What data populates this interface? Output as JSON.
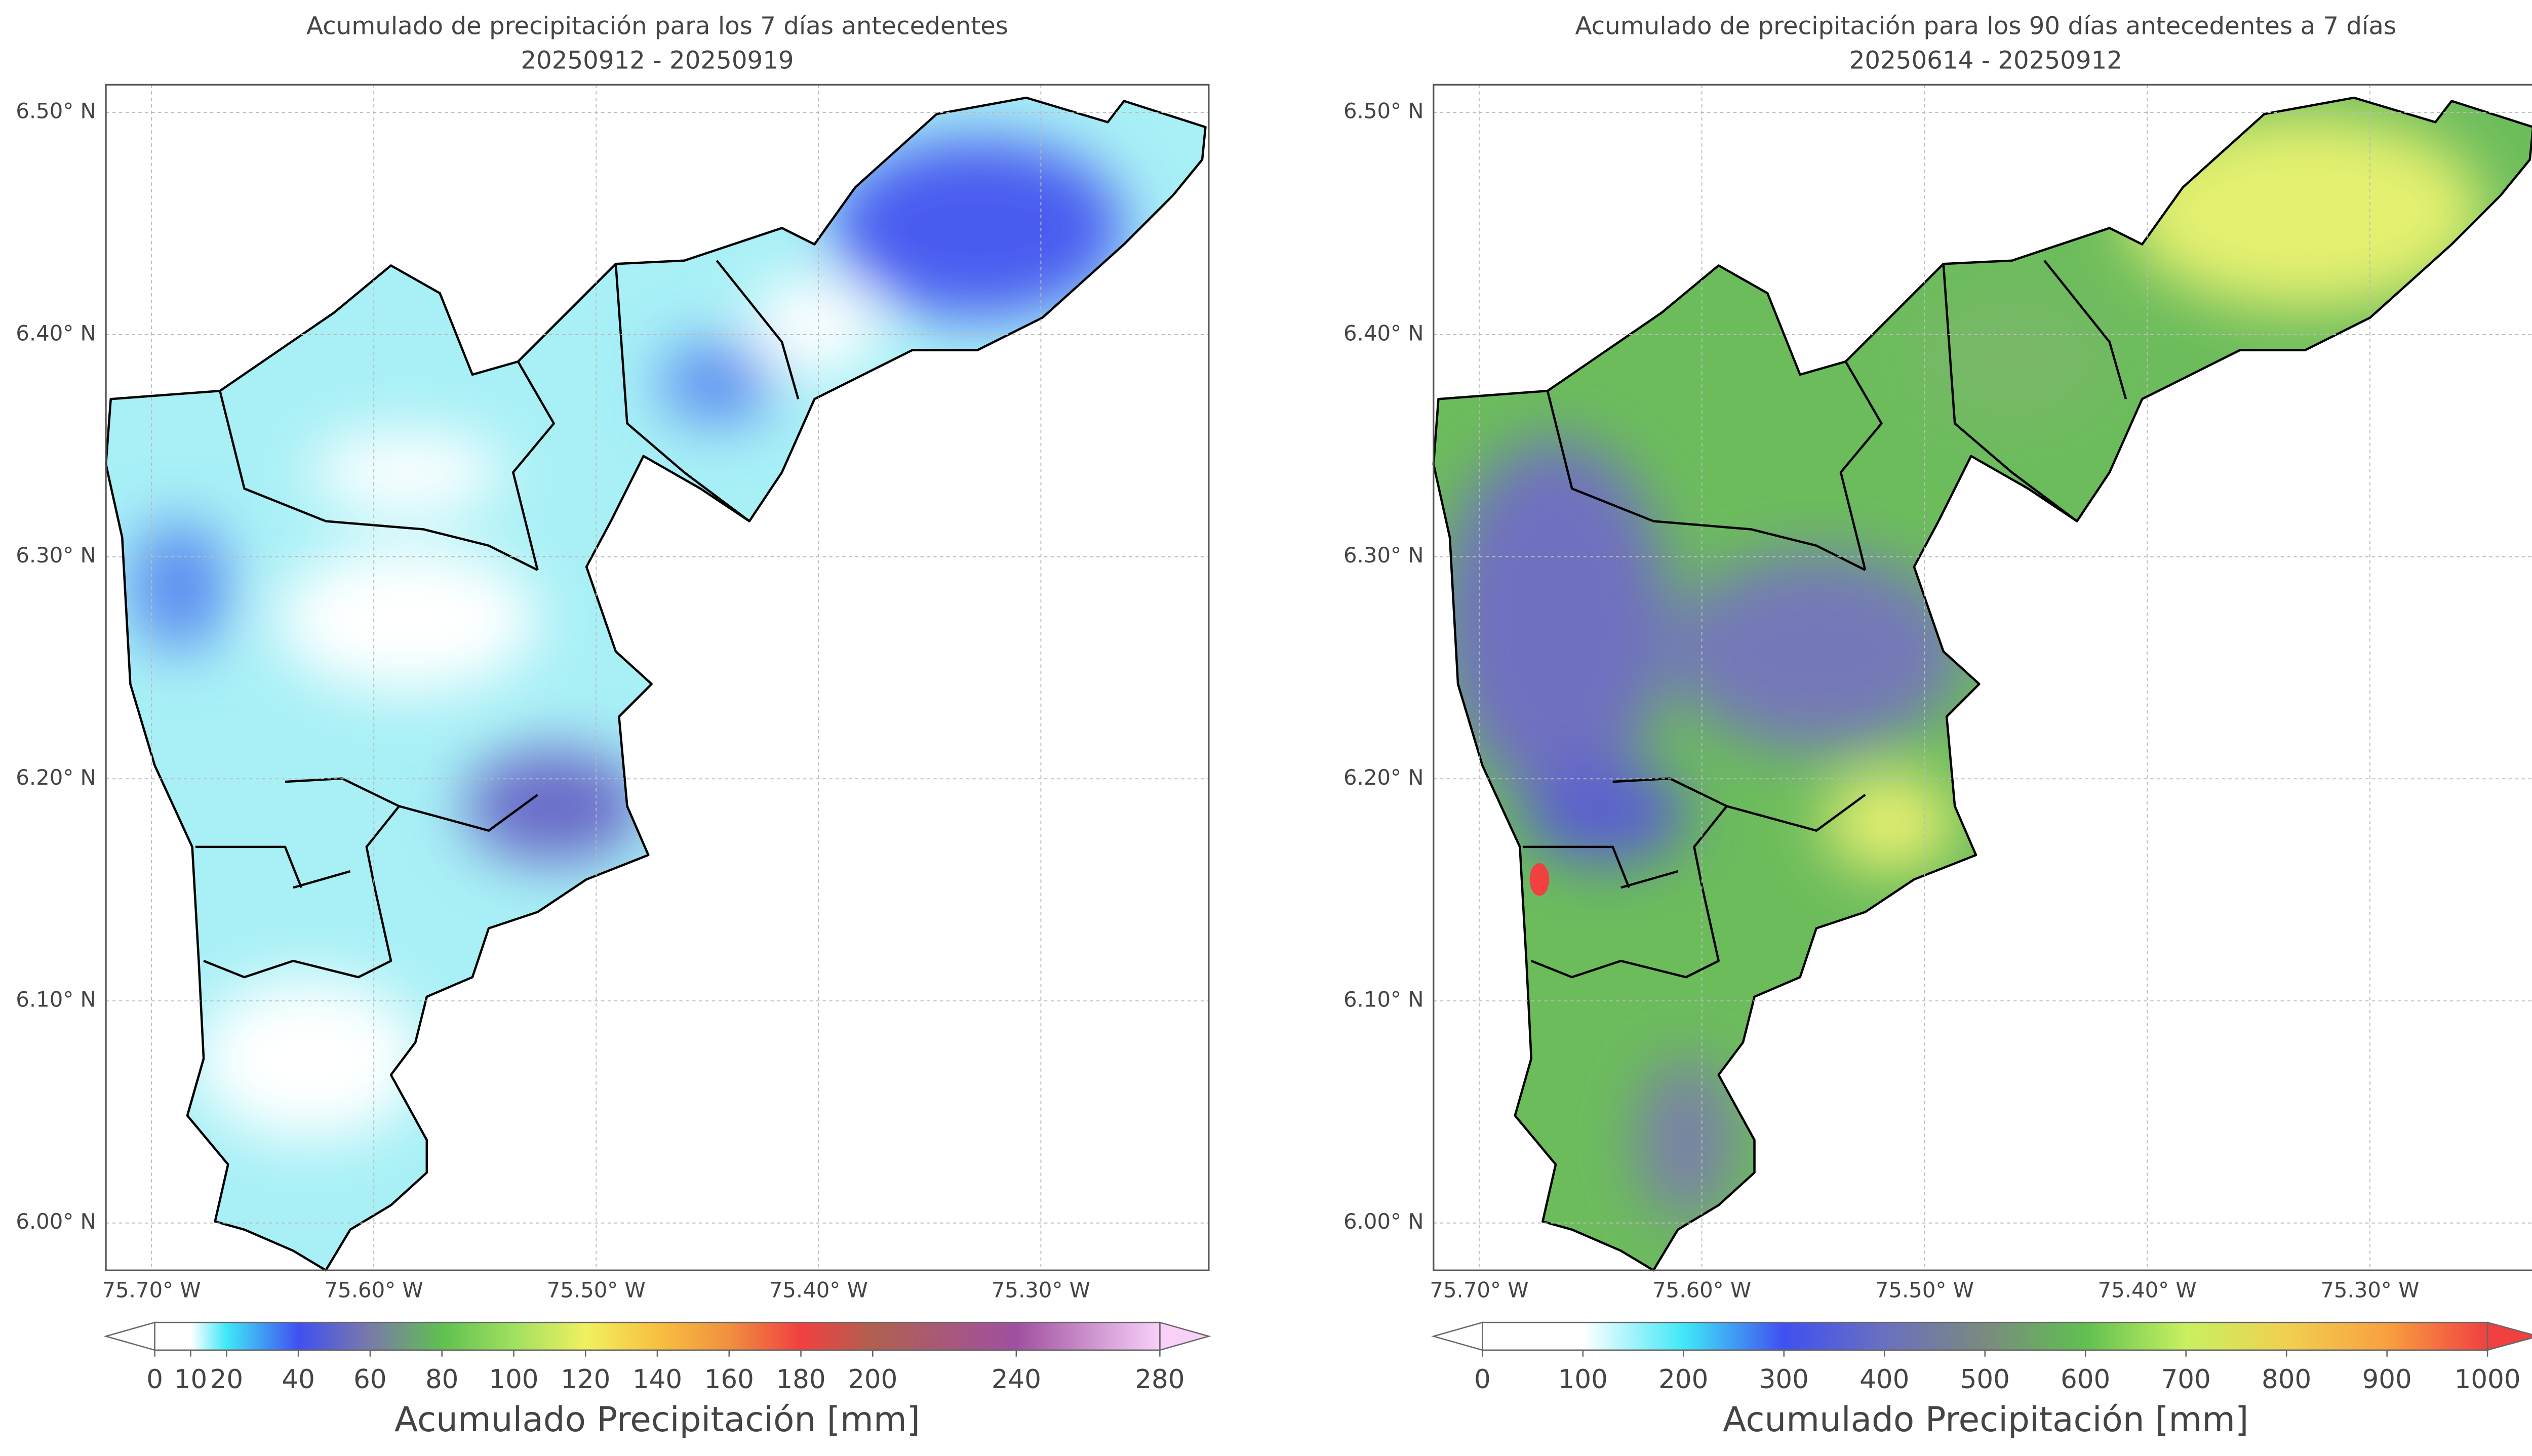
{
  "panels": [
    {
      "title": "Acumulado de precipitación para los 7 días antecedentes",
      "subtitle": "20250912 - 20250919",
      "xlim": [
        -75.7205,
        -75.2245
      ],
      "ylim": [
        5.9787,
        6.5125
      ],
      "xticks": [
        {
          "value": -75.7,
          "label": "75.70° W"
        },
        {
          "value": -75.6,
          "label": "75.60° W"
        },
        {
          "value": -75.5,
          "label": "75.50° W"
        },
        {
          "value": -75.4,
          "label": "75.40° W"
        },
        {
          "value": -75.3,
          "label": "75.30° W"
        }
      ],
      "yticks": [
        {
          "value": 6.0,
          "label": "6.00° N"
        },
        {
          "value": 6.1,
          "label": "6.10° N"
        },
        {
          "value": 6.2,
          "label": "6.20° N"
        },
        {
          "value": 6.3,
          "label": "6.30° N"
        },
        {
          "value": 6.4,
          "label": "6.40° N"
        },
        {
          "value": 6.5,
          "label": "6.50° N"
        }
      ],
      "colorbar": {
        "label": "Acumulado Precipitación [mm]",
        "lim": [
          0,
          280
        ],
        "ticks": [
          0,
          10,
          20,
          40,
          60,
          80,
          100,
          120,
          140,
          160,
          180,
          200,
          240,
          280
        ]
      }
    },
    {
      "title": "Acumulado de precipitación para los 90 días antecedentes a 7 días",
      "subtitle": "20250614 - 20250912",
      "xlim": [
        -75.7205,
        -75.2245
      ],
      "ylim": [
        5.9787,
        6.5125
      ],
      "xticks": [
        {
          "value": -75.7,
          "label": "75.70° W"
        },
        {
          "value": -75.6,
          "label": "75.60° W"
        },
        {
          "value": -75.5,
          "label": "75.50° W"
        },
        {
          "value": -75.4,
          "label": "75.40° W"
        },
        {
          "value": -75.3,
          "label": "75.30° W"
        }
      ],
      "yticks": [
        {
          "value": 6.0,
          "label": "6.00° N"
        },
        {
          "value": 6.1,
          "label": "6.10° N"
        },
        {
          "value": 6.2,
          "label": "6.20° N"
        },
        {
          "value": 6.3,
          "label": "6.30° N"
        },
        {
          "value": 6.4,
          "label": "6.40° N"
        },
        {
          "value": 6.5,
          "label": "6.50° N"
        }
      ],
      "colorbar": {
        "label": "Acumulado Precipitación [mm]",
        "lim": [
          0,
          1000
        ],
        "ticks": [
          0,
          100,
          200,
          300,
          400,
          500,
          600,
          700,
          800,
          900,
          1000
        ]
      }
    }
  ]
}
